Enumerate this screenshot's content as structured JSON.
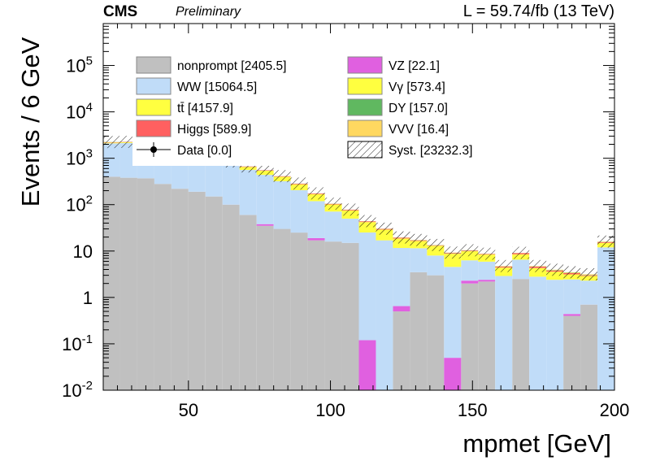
{
  "header": {
    "experiment": "CMS",
    "status": "Preliminary",
    "lumi": "L = 59.74/fb (13 TeV)"
  },
  "colors": {
    "nonprompt": "#c0c0c0",
    "WW": "#c0dcf8",
    "ttbar": "#ffff40",
    "Higgs": "#ff6060",
    "VZ": "#e060e0",
    "Vgamma": "#ffff40",
    "DY": "#60b860",
    "VVV": "#ffd860"
  },
  "chart_data": {
    "type": "bar",
    "stacked": true,
    "xlabel": "mpmet [GeV]",
    "ylabel": "Events / 6 GeV",
    "log_y": true,
    "xlim": [
      20,
      200
    ],
    "ylim": [
      0.01,
      800000
    ],
    "x_ticks": [
      "50",
      "100",
      "150",
      "200"
    ],
    "y_ticks": [
      "10^{-2}",
      "10^{-1}",
      "1",
      "10",
      "10^{2}",
      "10^{3}",
      "10^{4}",
      "10^{5}"
    ],
    "bin_edges": [
      20,
      26,
      32,
      38,
      44,
      50,
      56,
      62,
      68,
      74,
      80,
      86,
      92,
      98,
      104,
      110,
      116,
      122,
      128,
      134,
      140,
      146,
      152,
      158,
      164,
      170,
      176,
      182,
      188,
      194,
      200
    ],
    "legend": [
      {
        "key": "nonprompt",
        "label": "nonprompt [2405.5]"
      },
      {
        "key": "VZ",
        "label": "VZ [22.1]"
      },
      {
        "key": "WW",
        "label": "WW [15064.5]"
      },
      {
        "key": "Vgamma",
        "label": "Vγ [573.4]"
      },
      {
        "key": "ttbar",
        "label": "tt̄ [4157.9]"
      },
      {
        "key": "DY",
        "label": "DY [157.0]"
      },
      {
        "key": "Higgs",
        "label": "Higgs [589.9]"
      },
      {
        "key": "VVV",
        "label": "VVV [16.4]"
      },
      {
        "key": "Data",
        "label": "Data [0.0]"
      },
      {
        "key": "Syst",
        "label": "Syst. [23232.3]"
      }
    ],
    "series": [
      {
        "name": "nonprompt",
        "values": [
          400,
          380,
          370,
          280,
          220,
          190,
          150,
          100,
          60,
          35,
          30,
          25,
          17,
          16,
          15,
          0,
          0,
          0.5,
          3.5,
          3,
          0,
          2,
          2.2,
          0,
          2.5,
          0,
          0,
          0.4,
          0.7,
          0
        ]
      },
      {
        "name": "VZ",
        "values": [
          0,
          0,
          0,
          0,
          0,
          0,
          0,
          0,
          0,
          3,
          0,
          0,
          2,
          0,
          0,
          0.12,
          0,
          0.15,
          0,
          0,
          0.05,
          0.3,
          0.2,
          0,
          0,
          0,
          0,
          0.04,
          0,
          0
        ]
      },
      {
        "name": "WW",
        "values": [
          1700,
          1750,
          1500,
          1300,
          1100,
          950,
          800,
          650,
          500,
          400,
          290,
          180,
          100,
          55,
          35,
          25,
          17,
          11,
          8,
          5,
          4.5,
          4,
          3.5,
          2.9,
          4,
          2.8,
          2.4,
          2,
          1.6,
          12
        ]
      },
      {
        "name": "Vgamma",
        "values": [
          80,
          78,
          70,
          60,
          55,
          60,
          50,
          80,
          90,
          100,
          80,
          70,
          50,
          30,
          25,
          17,
          12,
          7,
          5,
          5,
          4.2,
          3.6,
          2.5,
          1.5,
          2,
          1.5,
          1.2,
          0.7,
          0.6,
          3
        ]
      },
      {
        "name": "ttbar",
        "values": [
          0,
          0,
          0,
          0,
          0,
          0,
          0,
          0,
          0,
          0,
          0,
          0,
          0,
          0,
          0,
          0,
          0,
          0,
          0,
          0,
          0,
          0,
          0,
          0,
          0,
          0,
          0,
          0,
          0,
          0
        ]
      },
      {
        "name": "Higgs",
        "values": [
          40,
          40,
          40,
          35,
          30,
          30,
          25,
          20,
          15,
          12,
          10,
          8,
          5,
          3,
          2.5,
          1.5,
          1,
          0.7,
          0.5,
          0.3,
          0.3,
          0.3,
          0.2,
          0.2,
          0.5,
          0.3,
          0.2,
          0.2,
          0.1,
          0.6
        ]
      },
      {
        "name": "DY",
        "values": [
          15,
          10,
          8,
          6,
          5,
          4,
          3,
          2,
          2,
          1.5,
          1,
          1,
          0.5,
          0.5,
          0.3,
          0.2,
          0.1,
          0.1,
          0.1,
          0.1,
          0.1,
          0.1,
          0.05,
          0.05,
          0.05,
          0.05,
          0.05,
          0.05,
          0.05,
          0.1
        ]
      },
      {
        "name": "VVV",
        "values": [
          1,
          1,
          1,
          1,
          1,
          1,
          0.8,
          0.7,
          0.6,
          0.6,
          0.5,
          0.5,
          0.4,
          0.4,
          0.3,
          0.3,
          0.2,
          0.2,
          0.2,
          0.1,
          0.1,
          0.1,
          0.1,
          0.1,
          0.1,
          0.1,
          0.1,
          0.1,
          0.1,
          0.3
        ]
      }
    ]
  }
}
